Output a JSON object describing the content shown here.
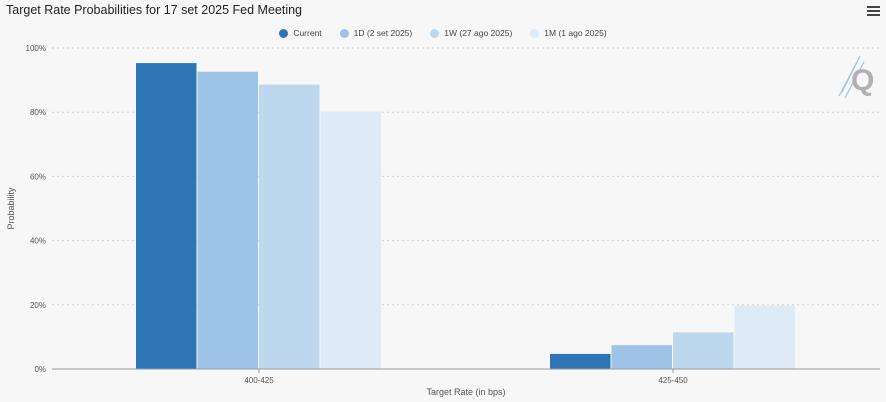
{
  "chart_data": {
    "type": "bar",
    "title": "Target Rate Probabilities for 17 set 2025 Fed Meeting",
    "xlabel": "Target Rate (in bps)",
    "ylabel": "Probability",
    "categories": [
      "400-425",
      "425-450"
    ],
    "series": [
      {
        "name": "Current",
        "color": "#2e75b6",
        "values": [
          95.3,
          4.7
        ]
      },
      {
        "name": "1D (2 set 2025)",
        "color": "#9dc3e6",
        "values": [
          92.6,
          7.4
        ]
      },
      {
        "name": "1W (27 ago 2025)",
        "color": "#bdd7ee",
        "values": [
          88.6,
          11.4
        ]
      },
      {
        "name": "1M (1 ago 2025)",
        "color": "#deebf7",
        "values": [
          80.2,
          19.8
        ]
      }
    ],
    "ylim": [
      0,
      100
    ],
    "yticks": [
      0,
      20,
      40,
      60,
      80,
      100
    ],
    "ytick_labels": [
      "0%",
      "20%",
      "40%",
      "60%",
      "80%",
      "100%"
    ],
    "grid": true,
    "legend": "top-center"
  },
  "icons": {
    "menu": "hamburger-menu-icon",
    "watermark": "q-logo-icon"
  }
}
